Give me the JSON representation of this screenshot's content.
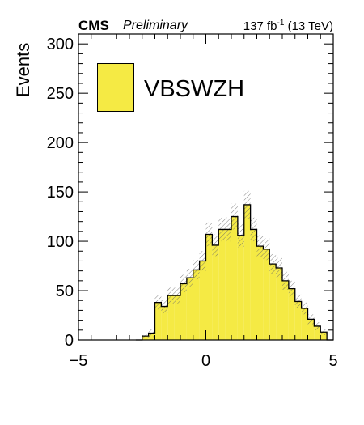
{
  "header": {
    "experiment": "CMS",
    "status": "Preliminary",
    "lumi_value": "137 fb",
    "lumi_exp": "-1",
    "lumi_energy": " (13 TeV)"
  },
  "chart_data": {
    "type": "bar",
    "subtype": "histogram",
    "ylabel": "Events",
    "xlim": [
      -5,
      5
    ],
    "ylim": [
      0,
      310
    ],
    "xticks": [
      "−5",
      "0",
      "5"
    ],
    "yticks": [
      "0",
      "50",
      "100",
      "150",
      "200",
      "250",
      "300"
    ],
    "bin_width": 0.25,
    "bin_edges_start": -2.75,
    "fill_color": "#f5ea44",
    "series": [
      {
        "name": "VBSWZH",
        "values": [
          0,
          4,
          7,
          38,
          34,
          45,
          45,
          57,
          63,
          71,
          80,
          107,
          96,
          112,
          112,
          125,
          106,
          137,
          112,
          95,
          92,
          77,
          73,
          60,
          52,
          39,
          32,
          21,
          14,
          8,
          0
        ]
      }
    ],
    "uncertainty": [
      0,
      2,
      4,
      7,
      7,
      8,
      8,
      9,
      9,
      10,
      10,
      12,
      11,
      12,
      12,
      13,
      12,
      14,
      12,
      11,
      11,
      10,
      10,
      9,
      8,
      7,
      6,
      5,
      4,
      3,
      0
    ],
    "legend": {
      "position": "top-left",
      "entries": [
        "VBSWZH"
      ]
    },
    "grid": false
  }
}
